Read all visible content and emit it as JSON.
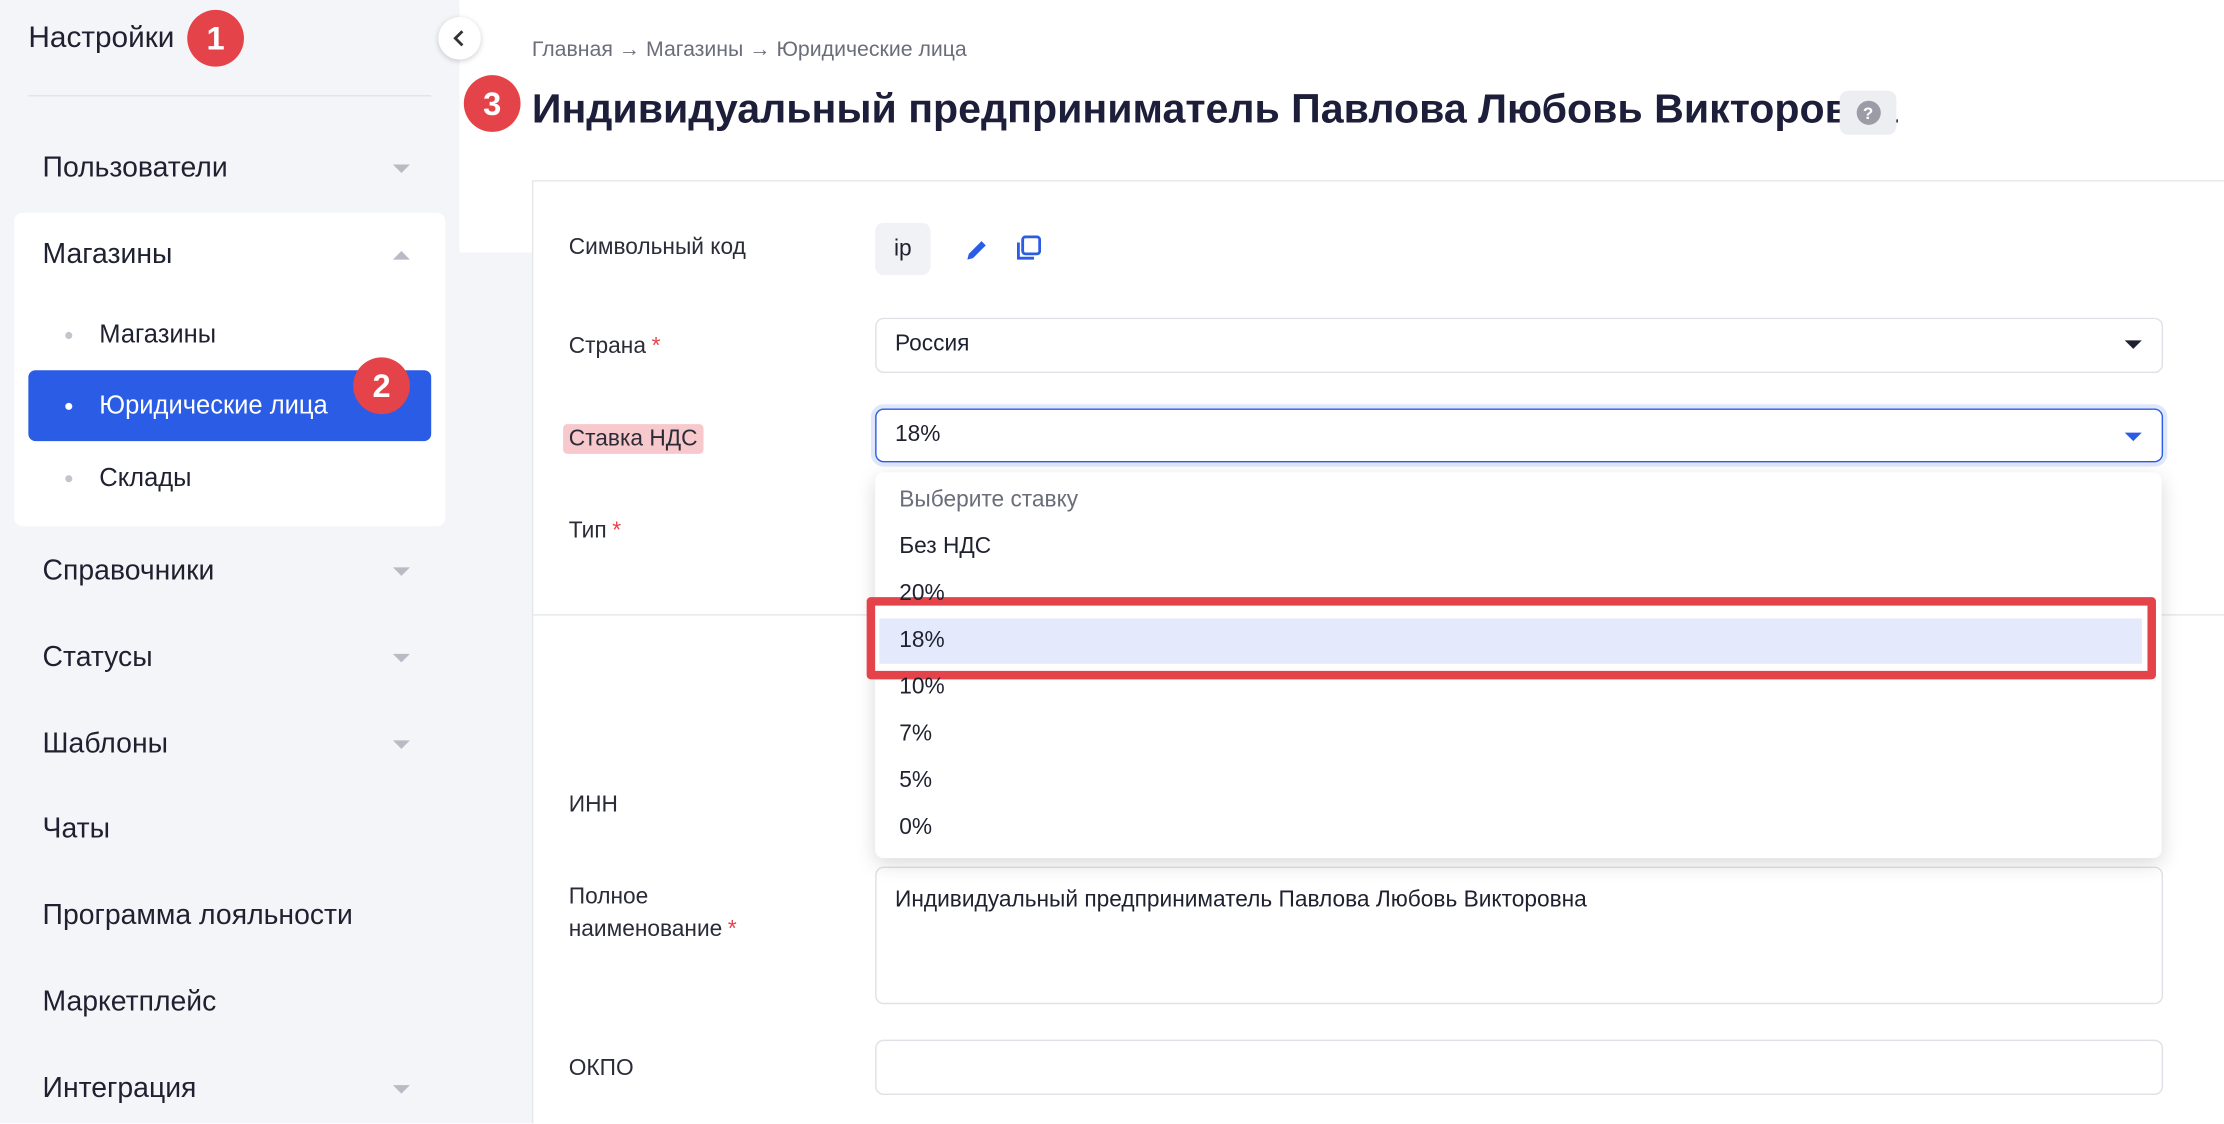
{
  "sidebar": {
    "title": "Настройки",
    "menu": [
      "Пользователи",
      "Магазины",
      "Справочники",
      "Статусы",
      "Шаблоны",
      "Чаты",
      "Программа лояльности",
      "Маркетплейс",
      "Интеграция"
    ],
    "submenu": [
      "Магазины",
      "Юридические лица",
      "Склады"
    ]
  },
  "badges": [
    "1",
    "2",
    "3"
  ],
  "breadcrumb": "Главная → Магазины → Юридические лица",
  "page": {
    "title": "Индивидуальный предприниматель Павлова Любовь Викторовна",
    "help": "?"
  },
  "form": {
    "required_mark": "*",
    "labels": [
      "Символьный код",
      "Страна",
      "Ставка НДС",
      "Тип",
      "ИНН",
      "Полное наименование",
      "ОКПО"
    ],
    "code": "ip",
    "country": "Россия",
    "vat": "18%",
    "full_name": "Индивидуальный предприниматель Павлова Любовь Викторовна"
  },
  "dropdown": {
    "options": [
      "Выберите ставку",
      "Без НДС",
      "20%",
      "18%",
      "10%",
      "7%",
      "5%",
      "0%"
    ]
  }
}
